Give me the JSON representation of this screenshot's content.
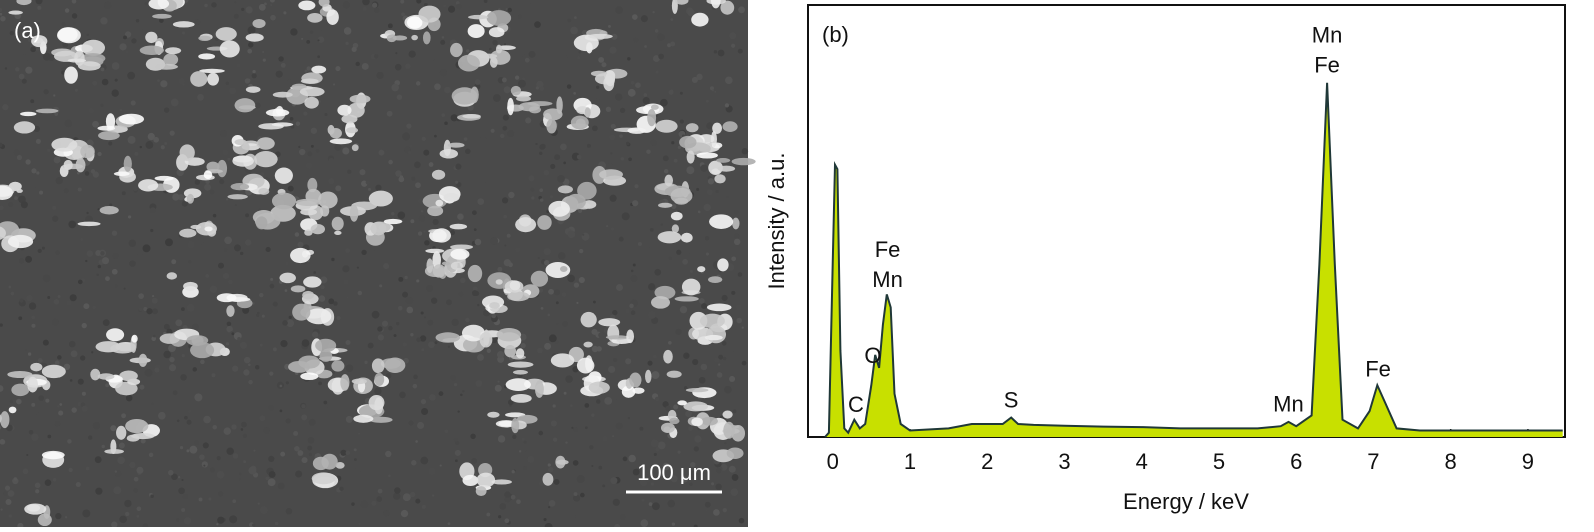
{
  "panel_a": {
    "label": "(a)",
    "scale_bar": "100 μm"
  },
  "chart_data": {
    "type": "area",
    "panel_label": "(b)",
    "x_label": "Energy / keV",
    "y_label": "Intensity / a.u.",
    "xlim": [
      -0.32,
      9.48
    ],
    "ylim": [
      0,
      100
    ],
    "xticks": [
      0,
      1,
      2,
      3,
      4,
      5,
      6,
      7,
      8,
      9
    ],
    "series": [
      {
        "color": "#c8e000",
        "x": [
          -0.1,
          -0.05,
          0,
          0.03,
          0.06,
          0.1,
          0.15,
          0.2,
          0.28,
          0.35,
          0.42,
          0.5,
          0.55,
          0.6,
          0.65,
          0.7,
          0.75,
          0.8,
          0.88,
          1.0,
          1.5,
          1.8,
          2.0,
          2.2,
          2.31,
          2.4,
          2.6,
          3.0,
          3.5,
          4.0,
          4.5,
          5.0,
          5.5,
          5.8,
          5.9,
          6.0,
          6.2,
          6.3,
          6.4,
          6.5,
          6.6,
          6.8,
          6.95,
          7.05,
          7.15,
          7.3,
          7.6,
          8.0,
          8.5,
          9.0,
          9.3,
          9.45
        ],
        "values": [
          0,
          1,
          40,
          63,
          62,
          20,
          2,
          1,
          4,
          2,
          3,
          12,
          19,
          16,
          26,
          33,
          30,
          10,
          3,
          1.5,
          2,
          3,
          3,
          3,
          4.5,
          3,
          2.8,
          2.6,
          2.4,
          2.3,
          2,
          2,
          2,
          2.5,
          3.5,
          2.5,
          5,
          40,
          82,
          40,
          4,
          2,
          6,
          12,
          8,
          2,
          1.5,
          1.5,
          1.5,
          1.5,
          1.5,
          1.5
        ]
      }
    ],
    "annotations": [
      {
        "lines": [
          "Mn",
          "Fe"
        ],
        "x": 6.4
      },
      {
        "lines": [
          "Fe",
          "Mn"
        ],
        "x": 0.71
      },
      {
        "lines": [
          "O"
        ],
        "x": 0.52
      },
      {
        "lines": [
          "C"
        ],
        "x": 0.3
      },
      {
        "lines": [
          "S"
        ],
        "x": 2.31
      },
      {
        "lines": [
          "Mn"
        ],
        "x": 5.9
      },
      {
        "lines": [
          "Fe"
        ],
        "x": 7.06
      }
    ]
  }
}
